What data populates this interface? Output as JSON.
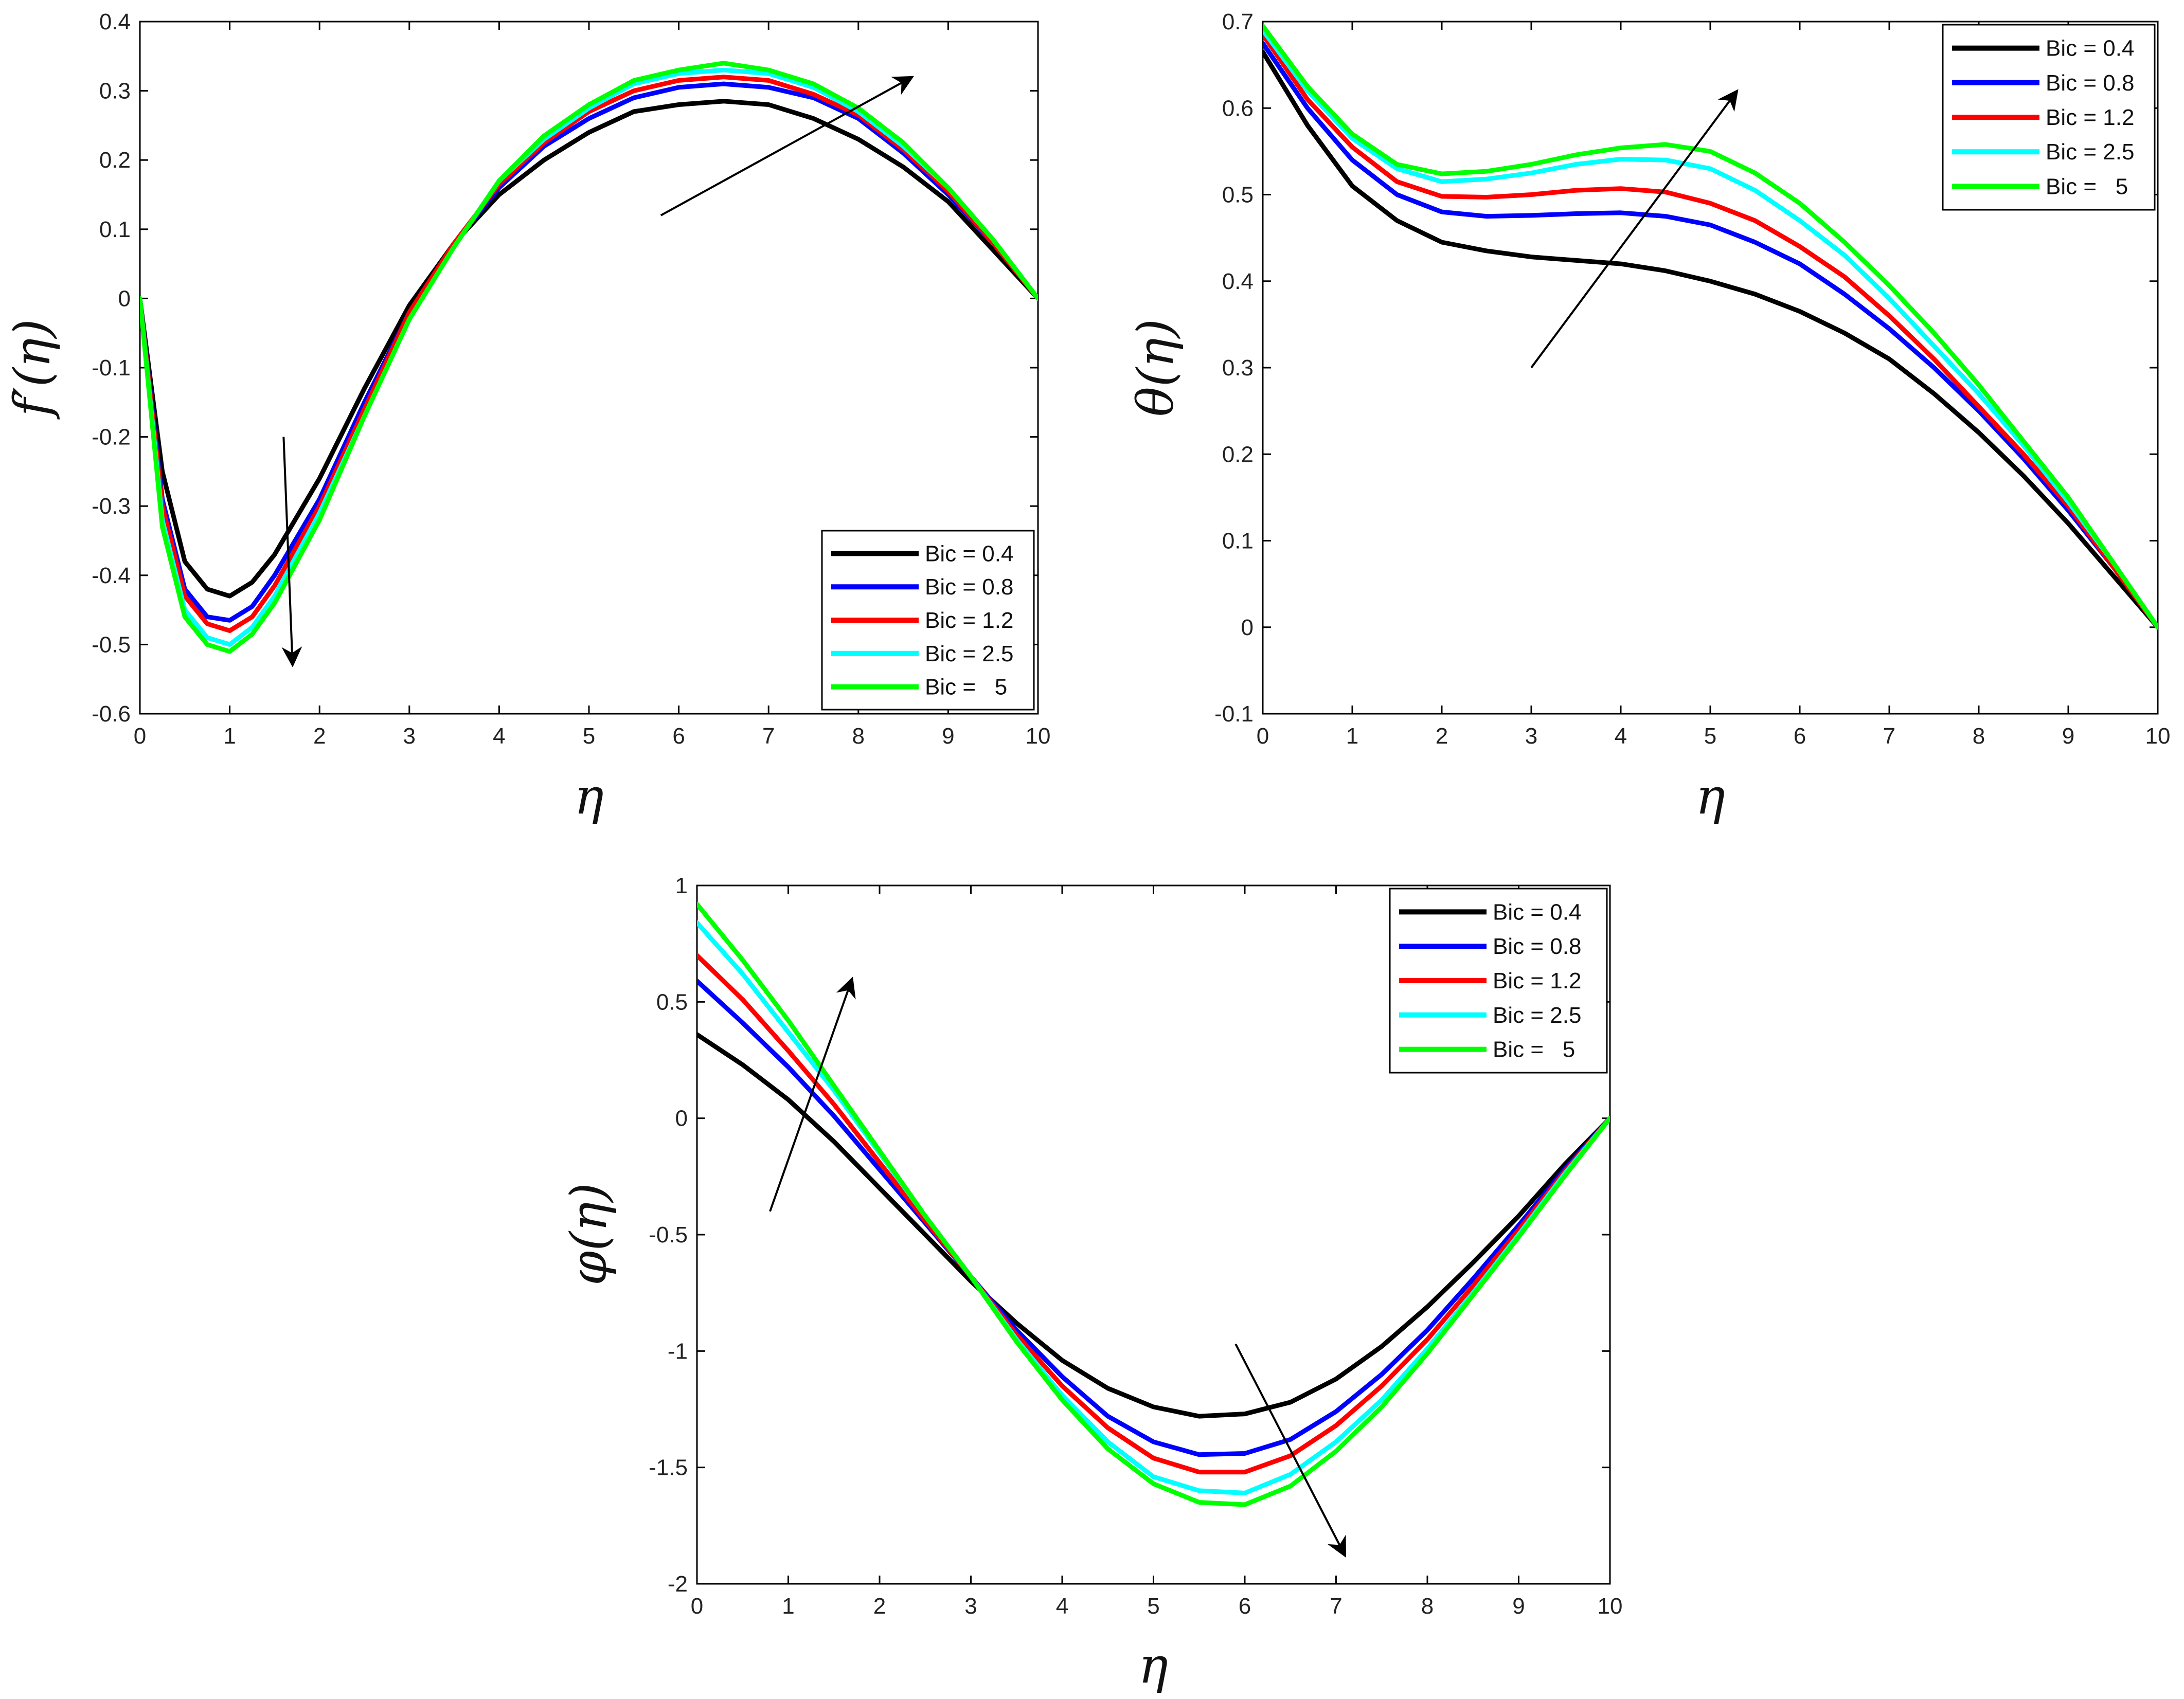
{
  "figure": {
    "background": "#ffffff"
  },
  "chart_data": [
    {
      "id": "fprime",
      "type": "line",
      "title": "",
      "xlabel": "η",
      "ylabel": "f′(η)",
      "xlim": [
        0,
        10
      ],
      "ylim": [
        -0.6,
        0.4
      ],
      "xticks": [
        0,
        1,
        2,
        3,
        4,
        5,
        6,
        7,
        8,
        9,
        10
      ],
      "yticks": [
        -0.6,
        -0.5,
        -0.4,
        -0.3,
        -0.2,
        -0.1,
        0,
        0.1,
        0.2,
        0.3,
        0.4
      ],
      "grid": false,
      "legend_position": "bottom-right",
      "x": [
        0,
        0.25,
        0.5,
        0.75,
        1,
        1.25,
        1.5,
        2,
        2.5,
        3,
        3.5,
        4,
        4.5,
        5,
        5.5,
        6,
        6.5,
        7,
        7.5,
        8,
        8.5,
        9,
        9.5,
        10
      ],
      "series": [
        {
          "name": "Bic = 0.4",
          "color": "#000000",
          "values": [
            0,
            -0.25,
            -0.38,
            -0.42,
            -0.43,
            -0.41,
            -0.37,
            -0.26,
            -0.13,
            -0.01,
            0.08,
            0.15,
            0.2,
            0.24,
            0.27,
            0.28,
            0.285,
            0.28,
            0.26,
            0.23,
            0.19,
            0.14,
            0.07,
            0
          ]
        },
        {
          "name": "Bic = 0.8",
          "color": "#0000ff",
          "values": [
            0,
            -0.29,
            -0.42,
            -0.46,
            -0.465,
            -0.445,
            -0.4,
            -0.29,
            -0.15,
            -0.02,
            0.08,
            0.16,
            0.22,
            0.26,
            0.29,
            0.305,
            0.31,
            0.305,
            0.29,
            0.26,
            0.21,
            0.15,
            0.08,
            0
          ]
        },
        {
          "name": "Bic = 1.2",
          "color": "#ff0000",
          "values": [
            0,
            -0.3,
            -0.43,
            -0.47,
            -0.48,
            -0.46,
            -0.415,
            -0.3,
            -0.16,
            -0.02,
            0.08,
            0.165,
            0.225,
            0.27,
            0.3,
            0.315,
            0.32,
            0.315,
            0.295,
            0.265,
            0.215,
            0.155,
            0.08,
            0
          ]
        },
        {
          "name": "Bic = 2.5",
          "color": "#00ffff",
          "values": [
            0,
            -0.32,
            -0.45,
            -0.49,
            -0.5,
            -0.475,
            -0.43,
            -0.31,
            -0.17,
            -0.03,
            0.075,
            0.17,
            0.23,
            0.275,
            0.31,
            0.325,
            0.33,
            0.325,
            0.305,
            0.27,
            0.22,
            0.16,
            0.085,
            0
          ]
        },
        {
          "name": "Bic =   5",
          "color": "#00ff00",
          "values": [
            0,
            -0.33,
            -0.46,
            -0.5,
            -0.51,
            -0.485,
            -0.44,
            -0.32,
            -0.17,
            -0.03,
            0.075,
            0.17,
            0.235,
            0.28,
            0.315,
            0.33,
            0.34,
            0.33,
            0.31,
            0.275,
            0.225,
            0.16,
            0.085,
            0
          ]
        }
      ],
      "arrows": [
        {
          "from": [
            5.8,
            0.12
          ],
          "to": [
            8.6,
            0.32
          ]
        },
        {
          "from": [
            1.6,
            -0.2
          ],
          "to": [
            1.7,
            -0.53
          ]
        }
      ]
    },
    {
      "id": "theta",
      "type": "line",
      "title": "",
      "xlabel": "η",
      "ylabel": "θ(η)",
      "xlim": [
        0,
        10
      ],
      "ylim": [
        -0.1,
        0.7
      ],
      "xticks": [
        0,
        1,
        2,
        3,
        4,
        5,
        6,
        7,
        8,
        9,
        10
      ],
      "yticks": [
        -0.1,
        0,
        0.1,
        0.2,
        0.3,
        0.4,
        0.5,
        0.6,
        0.7
      ],
      "grid": false,
      "legend_position": "top-right",
      "x": [
        0,
        0.5,
        1,
        1.5,
        2,
        2.5,
        3,
        3.5,
        4,
        4.5,
        5,
        5.5,
        6,
        6.5,
        7,
        7.5,
        8,
        8.5,
        9,
        9.5,
        10
      ],
      "series": [
        {
          "name": "Bic = 0.4",
          "color": "#000000",
          "values": [
            0.665,
            0.58,
            0.51,
            0.47,
            0.445,
            0.435,
            0.428,
            0.424,
            0.42,
            0.412,
            0.4,
            0.385,
            0.365,
            0.34,
            0.31,
            0.27,
            0.225,
            0.175,
            0.12,
            0.06,
            0
          ]
        },
        {
          "name": "Bic = 0.8",
          "color": "#0000ff",
          "values": [
            0.675,
            0.6,
            0.54,
            0.5,
            0.48,
            0.475,
            0.476,
            0.478,
            0.479,
            0.475,
            0.465,
            0.445,
            0.42,
            0.385,
            0.345,
            0.3,
            0.25,
            0.195,
            0.135,
            0.07,
            0
          ]
        },
        {
          "name": "Bic = 1.2",
          "color": "#ff0000",
          "values": [
            0.685,
            0.61,
            0.555,
            0.515,
            0.498,
            0.497,
            0.5,
            0.505,
            0.507,
            0.503,
            0.49,
            0.47,
            0.44,
            0.405,
            0.36,
            0.31,
            0.255,
            0.2,
            0.14,
            0.07,
            0
          ]
        },
        {
          "name": "Bic = 2.5",
          "color": "#00ffff",
          "values": [
            0.69,
            0.62,
            0.565,
            0.53,
            0.515,
            0.518,
            0.525,
            0.535,
            0.541,
            0.54,
            0.53,
            0.505,
            0.47,
            0.43,
            0.38,
            0.325,
            0.27,
            0.21,
            0.145,
            0.075,
            0
          ]
        },
        {
          "name": "Bic =   5",
          "color": "#00ff00",
          "values": [
            0.695,
            0.625,
            0.57,
            0.535,
            0.524,
            0.527,
            0.535,
            0.546,
            0.554,
            0.558,
            0.55,
            0.525,
            0.49,
            0.445,
            0.395,
            0.34,
            0.28,
            0.215,
            0.15,
            0.075,
            0
          ]
        }
      ],
      "arrows": [
        {
          "from": [
            3.0,
            0.3
          ],
          "to": [
            5.3,
            0.62
          ]
        }
      ]
    },
    {
      "id": "phi",
      "type": "line",
      "title": "",
      "xlabel": "η",
      "ylabel": "φ(η)",
      "xlim": [
        0,
        10
      ],
      "ylim": [
        -2,
        1
      ],
      "xticks": [
        0,
        1,
        2,
        3,
        4,
        5,
        6,
        7,
        8,
        9,
        10
      ],
      "yticks": [
        -2,
        -1.5,
        -1,
        -0.5,
        0,
        0.5,
        1
      ],
      "ytick_labels": [
        "-2",
        "-1.5",
        "-1",
        "-0.5",
        "0",
        "0.5",
        "1"
      ],
      "grid": false,
      "legend_position": "top-right",
      "x": [
        0,
        0.5,
        1,
        1.5,
        2,
        2.5,
        3,
        3.5,
        4,
        4.5,
        5,
        5.5,
        6,
        6.5,
        7,
        7.5,
        8,
        8.5,
        9,
        9.5,
        10
      ],
      "series": [
        {
          "name": "Bic = 0.4",
          "color": "#000000",
          "values": [
            0.36,
            0.23,
            0.08,
            -0.1,
            -0.3,
            -0.5,
            -0.7,
            -0.88,
            -1.04,
            -1.16,
            -1.24,
            -1.28,
            -1.27,
            -1.22,
            -1.12,
            -0.98,
            -0.81,
            -0.62,
            -0.42,
            -0.2,
            0
          ]
        },
        {
          "name": "Bic = 0.8",
          "color": "#0000ff",
          "values": [
            0.59,
            0.41,
            0.22,
            0.01,
            -0.22,
            -0.45,
            -0.68,
            -0.91,
            -1.11,
            -1.28,
            -1.39,
            -1.445,
            -1.44,
            -1.38,
            -1.26,
            -1.1,
            -0.91,
            -0.69,
            -0.46,
            -0.22,
            0
          ]
        },
        {
          "name": "Bic = 1.2",
          "color": "#ff0000",
          "values": [
            0.7,
            0.51,
            0.29,
            0.06,
            -0.19,
            -0.44,
            -0.68,
            -0.93,
            -1.15,
            -1.33,
            -1.46,
            -1.52,
            -1.52,
            -1.45,
            -1.32,
            -1.15,
            -0.95,
            -0.72,
            -0.48,
            -0.23,
            0
          ]
        },
        {
          "name": "Bic = 2.5",
          "color": "#00ffff",
          "values": [
            0.84,
            0.62,
            0.37,
            0.12,
            -0.15,
            -0.42,
            -0.68,
            -0.95,
            -1.19,
            -1.39,
            -1.54,
            -1.6,
            -1.61,
            -1.53,
            -1.39,
            -1.21,
            -0.99,
            -0.75,
            -0.5,
            -0.24,
            0
          ]
        },
        {
          "name": "Bic =   5",
          "color": "#00ff00",
          "values": [
            0.92,
            0.68,
            0.42,
            0.14,
            -0.14,
            -0.42,
            -0.68,
            -0.96,
            -1.21,
            -1.42,
            -1.57,
            -1.65,
            -1.66,
            -1.58,
            -1.43,
            -1.24,
            -1.01,
            -0.76,
            -0.51,
            -0.25,
            0
          ]
        }
      ],
      "arrows": [
        {
          "from": [
            0.8,
            -0.4
          ],
          "to": [
            1.7,
            0.6
          ]
        },
        {
          "from": [
            5.9,
            -0.97
          ],
          "to": [
            7.1,
            -1.88
          ]
        }
      ]
    }
  ]
}
